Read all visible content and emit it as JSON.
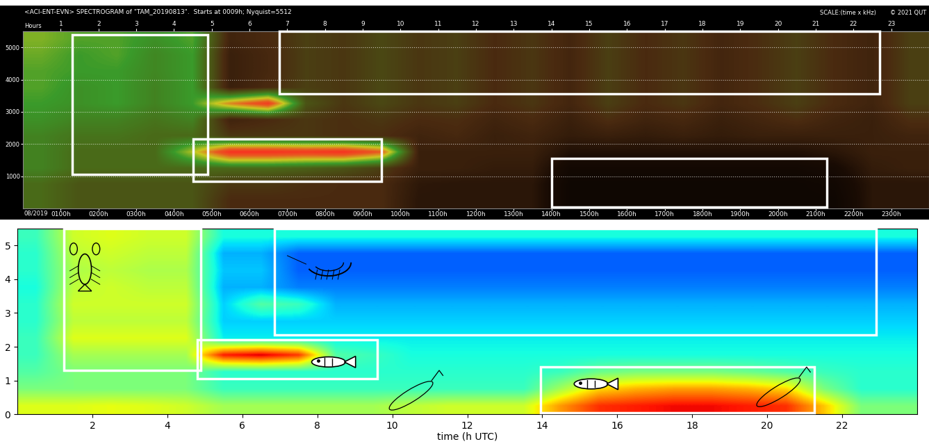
{
  "chart_data": [
    {
      "type": "heatmap",
      "title": "<ACI-ENT-EVN> SPECTROGRAM of \"TAM_20190813\".  Starts at 0009h; Nyquist=5512",
      "scale_label": "SCALE:(time x kHz)",
      "copyright": "© 2021 QUT",
      "x_title_top": "Hours",
      "date_label": "08/2019",
      "xlim": [
        0,
        24
      ],
      "ylim": [
        0,
        5500
      ],
      "xticks": [
        {
          "value": 1,
          "label": "0100h"
        },
        {
          "value": 2,
          "label": "0200h"
        },
        {
          "value": 3,
          "label": "0300h"
        },
        {
          "value": 4,
          "label": "0400h"
        },
        {
          "value": 5,
          "label": "0500h"
        },
        {
          "value": 6,
          "label": "0600h"
        },
        {
          "value": 7,
          "label": "0700h"
        },
        {
          "value": 8,
          "label": "0800h"
        },
        {
          "value": 9,
          "label": "0900h"
        },
        {
          "value": 10,
          "label": "1000h"
        },
        {
          "value": 11,
          "label": "1100h"
        },
        {
          "value": 12,
          "label": "1200h"
        },
        {
          "value": 13,
          "label": "1300h"
        },
        {
          "value": 14,
          "label": "1400h"
        },
        {
          "value": 15,
          "label": "1500h"
        },
        {
          "value": 16,
          "label": "1600h"
        },
        {
          "value": 17,
          "label": "1700h"
        },
        {
          "value": 18,
          "label": "1800h"
        },
        {
          "value": 19,
          "label": "1900h"
        },
        {
          "value": 20,
          "label": "2000h"
        },
        {
          "value": 21,
          "label": "2100h"
        },
        {
          "value": 22,
          "label": "2200h"
        },
        {
          "value": 23,
          "label": "2300h"
        }
      ],
      "xticks_top": [
        1,
        2,
        3,
        4,
        5,
        6,
        7,
        8,
        9,
        10,
        11,
        12,
        13,
        14,
        15,
        16,
        17,
        18,
        19,
        20,
        21,
        22,
        23
      ],
      "yticks": [
        1000,
        2000,
        3000,
        4000,
        5000
      ],
      "grid": true,
      "color_range": [
        0,
        1
      ],
      "cells": [
        [
          0.5,
          0.45,
          0.45,
          0.45,
          0.45,
          0.35,
          0.35,
          0.35,
          0.35,
          0.35,
          0.25,
          0.25,
          0.25,
          0.25,
          0.12,
          0.12,
          0.12,
          0.12,
          0.12,
          0.12,
          0.12,
          0.12,
          0.25,
          0.25
        ],
        [
          0.5,
          0.45,
          0.45,
          0.45,
          0.45,
          0.38,
          0.38,
          0.36,
          0.35,
          0.35,
          0.26,
          0.25,
          0.25,
          0.25,
          0.12,
          0.12,
          0.12,
          0.12,
          0.12,
          0.12,
          0.12,
          0.14,
          0.25,
          0.25
        ],
        [
          0.55,
          0.5,
          0.5,
          0.5,
          0.5,
          0.5,
          0.5,
          0.48,
          0.45,
          0.4,
          0.3,
          0.3,
          0.28,
          0.28,
          0.15,
          0.15,
          0.15,
          0.15,
          0.15,
          0.15,
          0.15,
          0.18,
          0.28,
          0.3
        ],
        [
          0.55,
          0.5,
          0.5,
          0.5,
          0.7,
          0.95,
          0.95,
          0.93,
          0.95,
          0.85,
          0.3,
          0.3,
          0.3,
          0.3,
          0.22,
          0.22,
          0.22,
          0.22,
          0.22,
          0.22,
          0.22,
          0.25,
          0.3,
          0.3
        ],
        [
          0.55,
          0.52,
          0.52,
          0.5,
          0.5,
          0.38,
          0.38,
          0.38,
          0.36,
          0.36,
          0.32,
          0.34,
          0.3,
          0.32,
          0.28,
          0.3,
          0.28,
          0.3,
          0.28,
          0.3,
          0.3,
          0.3,
          0.3,
          0.32
        ],
        [
          0.58,
          0.55,
          0.55,
          0.52,
          0.55,
          0.32,
          0.35,
          0.38,
          0.36,
          0.38,
          0.35,
          0.36,
          0.32,
          0.35,
          0.3,
          0.36,
          0.32,
          0.34,
          0.3,
          0.33,
          0.36,
          0.32,
          0.3,
          0.36
        ],
        [
          0.6,
          0.58,
          0.6,
          0.55,
          0.6,
          0.8,
          0.92,
          0.45,
          0.38,
          0.42,
          0.38,
          0.4,
          0.35,
          0.38,
          0.33,
          0.4,
          0.35,
          0.38,
          0.33,
          0.36,
          0.4,
          0.35,
          0.32,
          0.4
        ],
        [
          0.62,
          0.58,
          0.6,
          0.55,
          0.6,
          0.3,
          0.35,
          0.4,
          0.38,
          0.42,
          0.38,
          0.4,
          0.35,
          0.38,
          0.33,
          0.4,
          0.35,
          0.38,
          0.33,
          0.36,
          0.4,
          0.35,
          0.32,
          0.4
        ],
        [
          0.62,
          0.6,
          0.6,
          0.56,
          0.6,
          0.3,
          0.34,
          0.4,
          0.38,
          0.42,
          0.38,
          0.4,
          0.35,
          0.38,
          0.33,
          0.4,
          0.35,
          0.38,
          0.33,
          0.36,
          0.4,
          0.35,
          0.32,
          0.4
        ],
        [
          0.64,
          0.6,
          0.62,
          0.56,
          0.6,
          0.3,
          0.34,
          0.4,
          0.38,
          0.42,
          0.38,
          0.4,
          0.35,
          0.38,
          0.33,
          0.4,
          0.35,
          0.38,
          0.33,
          0.36,
          0.4,
          0.35,
          0.32,
          0.4
        ],
        [
          0.66,
          0.62,
          0.62,
          0.58,
          0.62,
          0.32,
          0.35,
          0.4,
          0.38,
          0.42,
          0.38,
          0.4,
          0.35,
          0.38,
          0.33,
          0.4,
          0.35,
          0.38,
          0.33,
          0.36,
          0.4,
          0.35,
          0.32,
          0.4
        ]
      ],
      "boxes": [
        [
          1.3,
          4.9,
          1050,
          5400
        ],
        [
          4.5,
          9.5,
          850,
          2150
        ],
        [
          6.8,
          22.7,
          3550,
          5500
        ],
        [
          14.0,
          21.3,
          50,
          1550
        ]
      ]
    },
    {
      "type": "heatmap",
      "xlabel": "time (h UTC)",
      "xlim": [
        0,
        24
      ],
      "ylim": [
        0,
        5.5
      ],
      "xticks": [
        2,
        4,
        6,
        8,
        10,
        12,
        14,
        16,
        18,
        20,
        22
      ],
      "yticks": [
        0,
        1,
        2,
        3,
        4,
        5
      ],
      "color_range": [
        0,
        1
      ],
      "cells": [
        [
          0.62,
          0.62,
          0.63,
          0.62,
          0.6,
          0.55,
          0.55,
          0.55,
          0.55,
          0.55,
          0.58,
          0.6,
          0.6,
          0.6,
          0.75,
          0.86,
          0.88,
          0.9,
          0.9,
          0.88,
          0.86,
          0.7,
          0.5,
          0.5
        ],
        [
          0.5,
          0.5,
          0.5,
          0.5,
          0.5,
          0.42,
          0.42,
          0.42,
          0.42,
          0.42,
          0.42,
          0.42,
          0.42,
          0.42,
          0.55,
          0.68,
          0.72,
          0.74,
          0.74,
          0.72,
          0.68,
          0.5,
          0.4,
          0.4
        ],
        [
          0.45,
          0.5,
          0.5,
          0.5,
          0.5,
          0.4,
          0.4,
          0.4,
          0.4,
          0.4,
          0.4,
          0.4,
          0.4,
          0.4,
          0.42,
          0.48,
          0.5,
          0.5,
          0.5,
          0.48,
          0.45,
          0.42,
          0.4,
          0.4
        ],
        [
          0.42,
          0.55,
          0.55,
          0.55,
          0.55,
          0.88,
          0.92,
          0.85,
          0.45,
          0.42,
          0.38,
          0.38,
          0.38,
          0.38,
          0.38,
          0.38,
          0.38,
          0.38,
          0.38,
          0.38,
          0.38,
          0.38,
          0.38,
          0.38
        ],
        [
          0.42,
          0.62,
          0.62,
          0.62,
          0.62,
          0.36,
          0.36,
          0.36,
          0.36,
          0.36,
          0.36,
          0.36,
          0.36,
          0.36,
          0.36,
          0.36,
          0.36,
          0.36,
          0.36,
          0.36,
          0.36,
          0.36,
          0.36,
          0.36
        ],
        [
          0.4,
          0.58,
          0.58,
          0.58,
          0.58,
          0.33,
          0.33,
          0.33,
          0.33,
          0.33,
          0.33,
          0.33,
          0.33,
          0.33,
          0.33,
          0.33,
          0.33,
          0.33,
          0.33,
          0.33,
          0.33,
          0.33,
          0.33,
          0.33
        ],
        [
          0.4,
          0.6,
          0.6,
          0.6,
          0.6,
          0.33,
          0.45,
          0.42,
          0.3,
          0.3,
          0.3,
          0.3,
          0.3,
          0.3,
          0.3,
          0.3,
          0.3,
          0.3,
          0.3,
          0.3,
          0.3,
          0.3,
          0.3,
          0.3
        ],
        [
          0.38,
          0.58,
          0.6,
          0.58,
          0.58,
          0.3,
          0.3,
          0.25,
          0.25,
          0.25,
          0.25,
          0.25,
          0.25,
          0.25,
          0.25,
          0.25,
          0.25,
          0.25,
          0.25,
          0.25,
          0.25,
          0.25,
          0.25,
          0.25
        ],
        [
          0.4,
          0.56,
          0.58,
          0.56,
          0.56,
          0.32,
          0.32,
          0.22,
          0.22,
          0.22,
          0.22,
          0.22,
          0.22,
          0.22,
          0.22,
          0.22,
          0.22,
          0.22,
          0.22,
          0.22,
          0.22,
          0.22,
          0.22,
          0.22
        ],
        [
          0.4,
          0.58,
          0.6,
          0.58,
          0.58,
          0.3,
          0.3,
          0.22,
          0.22,
          0.22,
          0.22,
          0.22,
          0.22,
          0.22,
          0.22,
          0.22,
          0.22,
          0.22,
          0.22,
          0.22,
          0.22,
          0.22,
          0.22,
          0.22
        ],
        [
          0.42,
          0.6,
          0.62,
          0.6,
          0.6,
          0.38,
          0.38,
          0.38,
          0.38,
          0.38,
          0.38,
          0.38,
          0.38,
          0.38,
          0.38,
          0.38,
          0.38,
          0.38,
          0.38,
          0.38,
          0.38,
          0.38,
          0.38,
          0.38
        ]
      ],
      "boxes": [
        [
          1.25,
          4.9,
          1.3,
          5.5
        ],
        [
          4.8,
          9.6,
          1.05,
          2.2
        ],
        [
          6.85,
          22.9,
          2.35,
          5.5
        ],
        [
          13.95,
          21.25,
          0.05,
          1.4
        ]
      ]
    }
  ]
}
